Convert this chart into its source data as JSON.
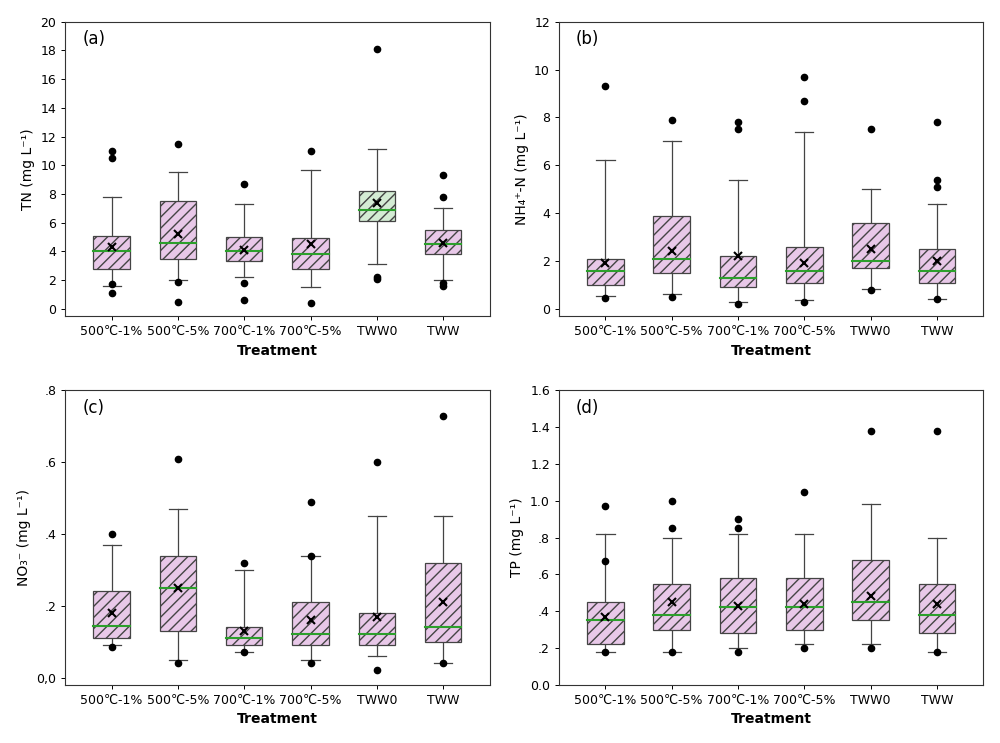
{
  "categories": [
    "500℃-1%",
    "500℃-5%",
    "700℃-1%",
    "700℃-5%",
    "TWW0",
    "TWW"
  ],
  "panels": {
    "a": {
      "label": "(a)",
      "ylabel": "TN (mg L⁻¹)",
      "ylim": [
        -0.5,
        20
      ],
      "yticks": [
        0,
        2,
        4,
        6,
        8,
        10,
        12,
        14,
        16,
        18,
        20
      ],
      "yticklabels": [
        "0",
        "2",
        "4",
        "6",
        "8",
        "10",
        "12",
        "14",
        "16",
        "18",
        "20"
      ],
      "boxes": [
        {
          "q1": 2.8,
          "median": 4.0,
          "q3": 5.1,
          "mean": 4.3,
          "whislo": 1.6,
          "whishi": 7.8,
          "fliers": [
            11.0,
            10.5,
            1.7,
            1.1
          ]
        },
        {
          "q1": 3.5,
          "median": 4.6,
          "q3": 7.5,
          "mean": 5.2,
          "whislo": 2.0,
          "whishi": 9.5,
          "fliers": [
            11.5,
            0.5,
            1.9
          ]
        },
        {
          "q1": 3.3,
          "median": 4.0,
          "q3": 5.0,
          "mean": 4.1,
          "whislo": 2.2,
          "whishi": 7.3,
          "fliers": [
            8.7,
            1.8,
            0.6
          ]
        },
        {
          "q1": 2.8,
          "median": 3.8,
          "q3": 4.9,
          "mean": 4.5,
          "whislo": 1.5,
          "whishi": 9.7,
          "fliers": [
            11.0,
            0.4
          ]
        },
        {
          "q1": 6.1,
          "median": 6.9,
          "q3": 8.2,
          "mean": 7.4,
          "whislo": 3.1,
          "whishi": 11.1,
          "fliers": [
            18.1,
            2.2,
            2.1
          ],
          "special": true
        },
        {
          "q1": 3.8,
          "median": 4.5,
          "q3": 5.5,
          "mean": 4.6,
          "whislo": 2.0,
          "whishi": 7.0,
          "fliers": [
            9.3,
            7.8,
            1.8,
            1.6
          ]
        }
      ]
    },
    "b": {
      "label": "(b)",
      "ylabel": "NH₄⁺-N (mg L⁻¹)",
      "ylim": [
        -0.3,
        12
      ],
      "yticks": [
        0,
        2,
        4,
        6,
        8,
        10,
        12
      ],
      "yticklabels": [
        "0",
        "2",
        "4",
        "6",
        "8",
        "10",
        "12"
      ],
      "boxes": [
        {
          "q1": 1.0,
          "median": 1.6,
          "q3": 2.1,
          "mean": 1.9,
          "whislo": 0.55,
          "whishi": 6.2,
          "fliers": [
            9.3,
            0.45
          ]
        },
        {
          "q1": 1.5,
          "median": 2.1,
          "q3": 3.9,
          "mean": 2.4,
          "whislo": 0.6,
          "whishi": 7.0,
          "fliers": [
            7.9,
            0.5
          ]
        },
        {
          "q1": 0.9,
          "median": 1.3,
          "q3": 2.2,
          "mean": 2.2,
          "whislo": 0.3,
          "whishi": 5.4,
          "fliers": [
            7.8,
            7.5,
            0.2
          ]
        },
        {
          "q1": 1.1,
          "median": 1.6,
          "q3": 2.6,
          "mean": 1.9,
          "whislo": 0.35,
          "whishi": 7.4,
          "fliers": [
            9.7,
            8.7,
            0.3
          ]
        },
        {
          "q1": 1.7,
          "median": 2.0,
          "q3": 3.6,
          "mean": 2.5,
          "whislo": 0.85,
          "whishi": 5.0,
          "fliers": [
            7.5,
            0.8
          ]
        },
        {
          "q1": 1.1,
          "median": 1.6,
          "q3": 2.5,
          "mean": 2.0,
          "whislo": 0.4,
          "whishi": 4.4,
          "fliers": [
            7.8,
            5.4,
            5.1,
            0.4
          ]
        }
      ]
    },
    "c": {
      "label": "(c)",
      "ylabel": "NO₃⁻ (mg L⁻¹)",
      "ylim": [
        -0.02,
        0.8
      ],
      "yticks": [
        0.0,
        0.2,
        0.4,
        0.6,
        0.8
      ],
      "yticklabels": [
        "0,0",
        ".2",
        ".4",
        ".6",
        ".8"
      ],
      "boxes": [
        {
          "q1": 0.11,
          "median": 0.145,
          "q3": 0.24,
          "mean": 0.18,
          "whislo": 0.09,
          "whishi": 0.37,
          "fliers": [
            0.4,
            0.085
          ]
        },
        {
          "q1": 0.13,
          "median": 0.25,
          "q3": 0.34,
          "mean": 0.25,
          "whislo": 0.05,
          "whishi": 0.47,
          "fliers": [
            0.61,
            0.04
          ]
        },
        {
          "q1": 0.09,
          "median": 0.11,
          "q3": 0.14,
          "mean": 0.13,
          "whislo": 0.07,
          "whishi": 0.3,
          "fliers": [
            0.32,
            0.07
          ]
        },
        {
          "q1": 0.09,
          "median": 0.12,
          "q3": 0.21,
          "mean": 0.16,
          "whislo": 0.05,
          "whishi": 0.34,
          "fliers": [
            0.49,
            0.34,
            0.04
          ]
        },
        {
          "q1": 0.09,
          "median": 0.12,
          "q3": 0.18,
          "mean": 0.17,
          "whislo": 0.06,
          "whishi": 0.45,
          "fliers": [
            0.6,
            0.02
          ]
        },
        {
          "q1": 0.1,
          "median": 0.14,
          "q3": 0.32,
          "mean": 0.21,
          "whislo": 0.04,
          "whishi": 0.45,
          "fliers": [
            0.73,
            0.04
          ]
        }
      ]
    },
    "d": {
      "label": "(d)",
      "ylabel": "TP (mg L⁻¹)",
      "ylim": [
        0.0,
        1.6
      ],
      "yticks": [
        0.0,
        0.2,
        0.4,
        0.6,
        0.8,
        1.0,
        1.2,
        1.4,
        1.6
      ],
      "yticklabels": [
        "0.0",
        ".2",
        ".4",
        ".6",
        ".8",
        "1.0",
        "1.2",
        "1.4",
        "1.6"
      ],
      "boxes": [
        {
          "q1": 0.22,
          "median": 0.35,
          "q3": 0.45,
          "mean": 0.37,
          "whislo": 0.18,
          "whishi": 0.82,
          "fliers": [
            0.97,
            0.67,
            0.18
          ]
        },
        {
          "q1": 0.3,
          "median": 0.38,
          "q3": 0.55,
          "mean": 0.45,
          "whislo": 0.18,
          "whishi": 0.8,
          "fliers": [
            1.0,
            0.85,
            0.18
          ]
        },
        {
          "q1": 0.28,
          "median": 0.42,
          "q3": 0.58,
          "mean": 0.43,
          "whislo": 0.2,
          "whishi": 0.82,
          "fliers": [
            0.9,
            0.85,
            0.18
          ]
        },
        {
          "q1": 0.3,
          "median": 0.42,
          "q3": 0.58,
          "mean": 0.44,
          "whislo": 0.22,
          "whishi": 0.82,
          "fliers": [
            1.05,
            0.2
          ]
        },
        {
          "q1": 0.35,
          "median": 0.45,
          "q3": 0.68,
          "mean": 0.48,
          "whislo": 0.22,
          "whishi": 0.98,
          "fliers": [
            1.38,
            0.2
          ]
        },
        {
          "q1": 0.28,
          "median": 0.38,
          "q3": 0.55,
          "mean": 0.44,
          "whislo": 0.18,
          "whishi": 0.8,
          "fliers": [
            1.38,
            0.18
          ]
        }
      ]
    }
  },
  "box_facecolor": "#e8c8e8",
  "box_facecolor_special": "#d4ecd4",
  "box_edgecolor": "#444444",
  "box_hatch": "///",
  "median_color": "#2ca02c",
  "mean_marker": "x",
  "mean_color": "#000000",
  "flier_color": "#000000",
  "whisker_color": "#444444",
  "cap_color": "#444444",
  "xlabel": "Treatment",
  "label_fontsize": 10,
  "tick_fontsize": 9,
  "panel_label_fontsize": 12,
  "figsize": [
    10.0,
    7.43
  ],
  "dpi": 100
}
